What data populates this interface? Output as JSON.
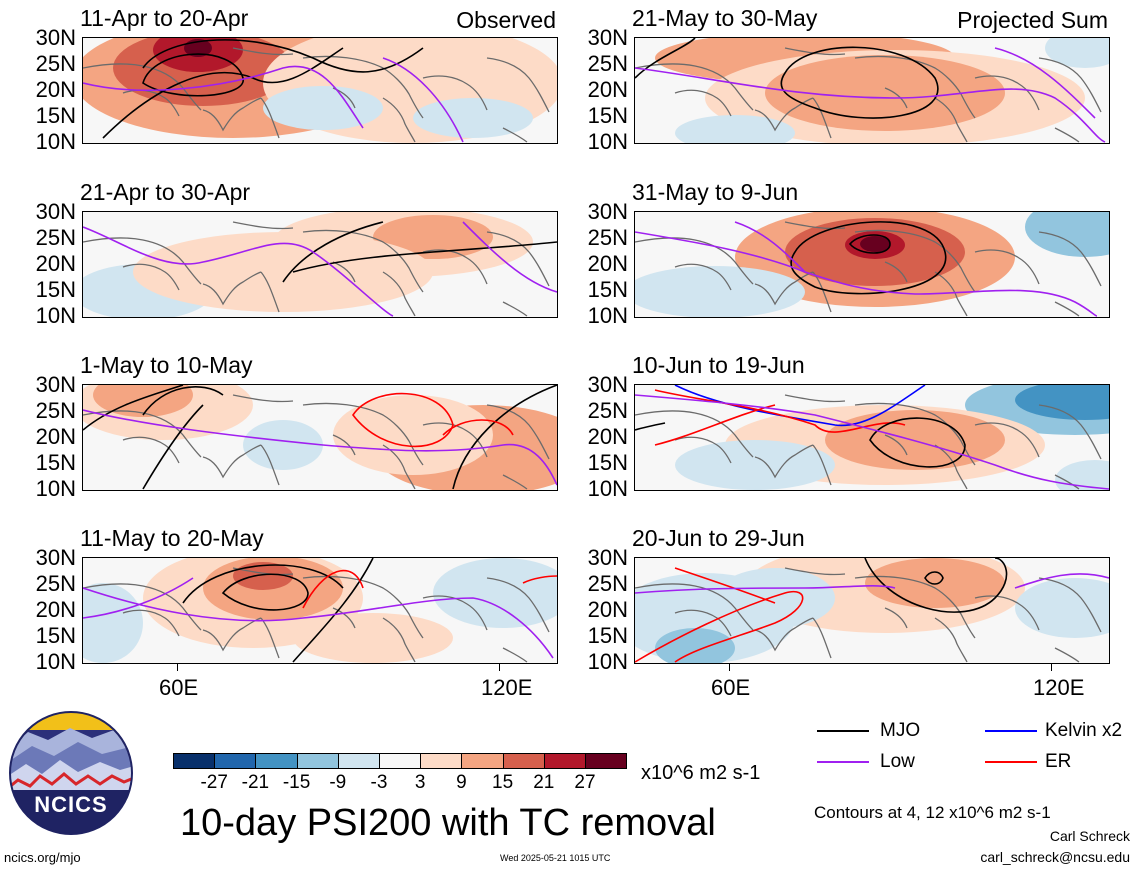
{
  "panels": [
    {
      "id": "p1",
      "title": "11-Apr to 20-Apr",
      "corner": "Observed"
    },
    {
      "id": "p2",
      "title": "21-May to 30-May",
      "corner": "Projected Sum"
    },
    {
      "id": "p3",
      "title": "21-Apr to 30-Apr",
      "corner": ""
    },
    {
      "id": "p4",
      "title": "31-May to 9-Jun",
      "corner": ""
    },
    {
      "id": "p5",
      "title": "1-May to 10-May",
      "corner": ""
    },
    {
      "id": "p6",
      "title": "10-Jun to 19-Jun",
      "corner": ""
    },
    {
      "id": "p7",
      "title": "11-May to 20-May",
      "corner": ""
    },
    {
      "id": "p8",
      "title": "20-Jun to 29-Jun",
      "corner": ""
    }
  ],
  "lat_labels": [
    "30N",
    "25N",
    "20N",
    "15N",
    "10N"
  ],
  "lon_labels": [
    "60E",
    "120E"
  ],
  "colorbar": {
    "labels": [
      "-27",
      "-21",
      "-15",
      "-9",
      "-3",
      "3",
      "9",
      "15",
      "21",
      "27"
    ],
    "colors": [
      "#08306b",
      "#2166ac",
      "#4393c3",
      "#92c5de",
      "#d1e5f0",
      "#f7f7f7",
      "#fddbc7",
      "#f4a582",
      "#d6604d",
      "#b2182b",
      "#67001f"
    ],
    "units": "x10^6 m2 s-1"
  },
  "legend": {
    "items": [
      {
        "label": "MJO",
        "color": "#000000"
      },
      {
        "label": "Kelvin x2",
        "color": "#0000ff"
      },
      {
        "label": "Low",
        "color": "#a020f0"
      },
      {
        "label": "ER",
        "color": "#ff0000"
      }
    ],
    "contours_note": "Contours at 4, 12 x10^6 m2 s-1"
  },
  "main_title": "10-day PSI200 with TC removal",
  "logo_text": "NCICS",
  "footer": {
    "site": "ncics.org/mjo",
    "timestamp": "Wed 2025-05-21 1015 UTC",
    "author": "Carl Schreck",
    "email": "carl_schreck@ncsu.edu"
  }
}
